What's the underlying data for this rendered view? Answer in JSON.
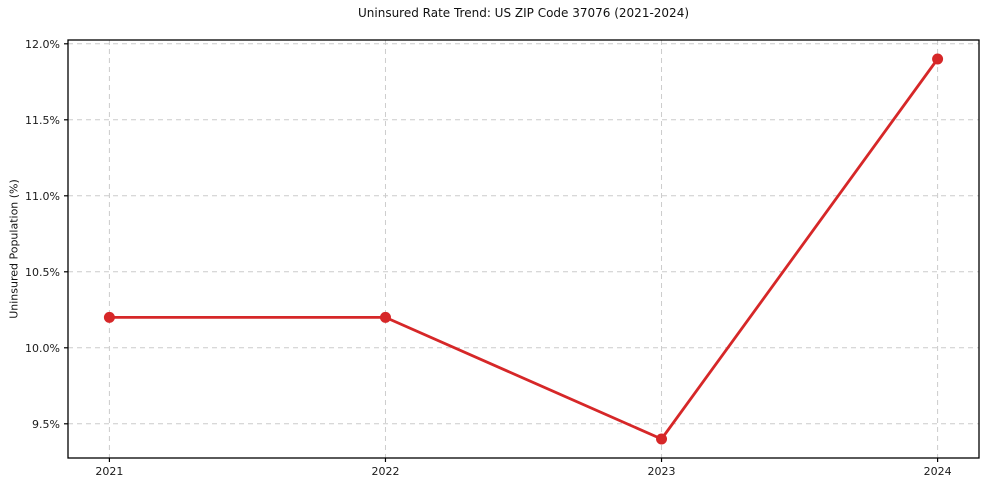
{
  "title": "Uninsured Rate Trend: US ZIP Code 37076 (2021-2024)",
  "chart_data": {
    "type": "line",
    "title": "Uninsured Rate Trend: US ZIP Code 37076 (2021-2024)",
    "xlabel": "",
    "ylabel": "Uninsured Population (%)",
    "x": [
      2021,
      2022,
      2023,
      2024
    ],
    "x_tick_labels": [
      "2021",
      "2022",
      "2023",
      "2024"
    ],
    "values": [
      10.2,
      10.2,
      9.4,
      11.9
    ],
    "y_ticks": [
      9.5,
      10.0,
      10.5,
      11.0,
      11.5,
      12.0
    ],
    "y_tick_labels": [
      "9.5%",
      "10.0%",
      "10.5%",
      "11.0%",
      "11.5%",
      "12.0%"
    ],
    "xlim": [
      2020.85,
      2024.15
    ],
    "ylim": [
      9.275,
      12.025
    ],
    "grid": true,
    "grid_style": "dashed",
    "legend": "none",
    "line_color": "#d62728",
    "marker": "circle",
    "grid_color": "#cccccc",
    "spine_color": "#000000",
    "background_color": "#ffffff"
  }
}
